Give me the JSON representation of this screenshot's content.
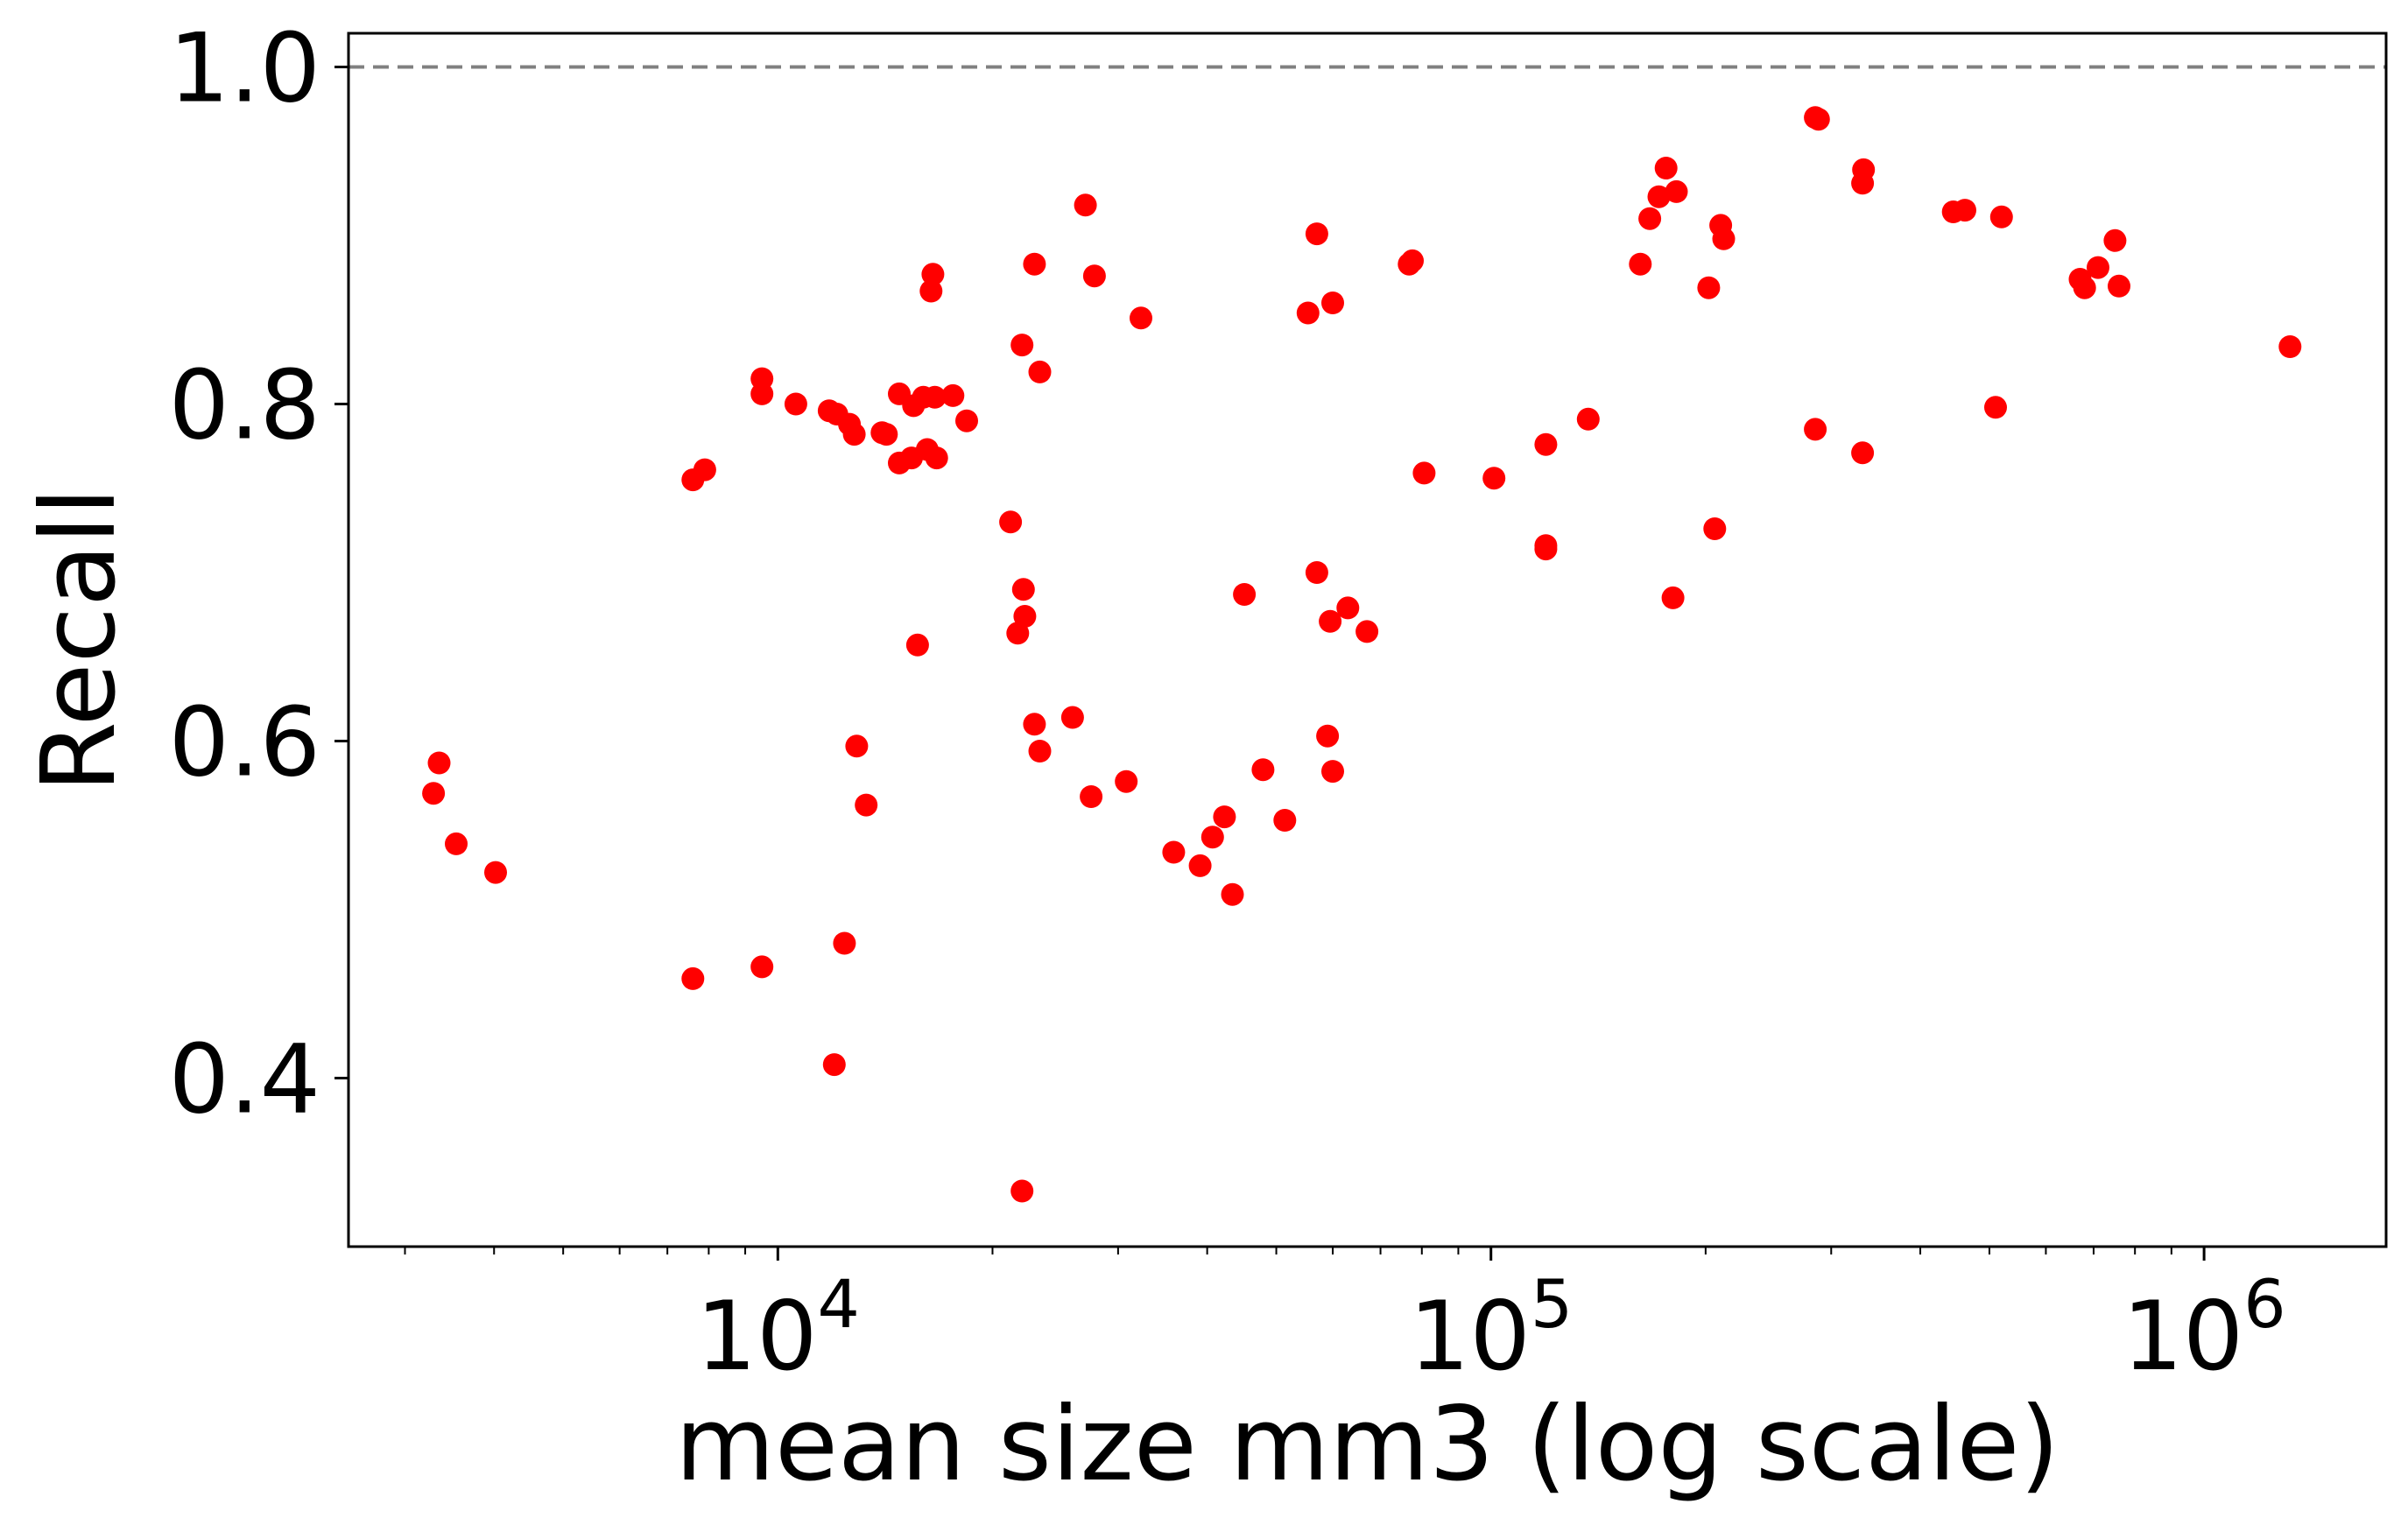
{
  "chart_data": {
    "type": "scatter",
    "title": "",
    "xlabel": "mean size mm3 (log scale)",
    "ylabel": "Recall",
    "xscale": "log",
    "xlim": [
      2500,
      1800000
    ],
    "ylim": [
      0.3,
      1.02
    ],
    "grid": false,
    "x_ticks": [
      {
        "value": 10000,
        "base": "10",
        "exp": "4"
      },
      {
        "value": 100000,
        "base": "10",
        "exp": "5"
      },
      {
        "value": 1000000,
        "base": "10",
        "exp": "6"
      }
    ],
    "y_ticks": [
      {
        "value": 0.4,
        "label": "0.4"
      },
      {
        "value": 0.6,
        "label": "0.6"
      },
      {
        "value": 0.8,
        "label": "0.8"
      },
      {
        "value": 1.0,
        "label": "1.0"
      }
    ],
    "reference_line": {
      "y": 1.0,
      "color": "#808080",
      "style": "dashed"
    },
    "marker_color": "#ff0000",
    "points": [
      {
        "x": 3350,
        "y": 0.587
      },
      {
        "x": 3290,
        "y": 0.569
      },
      {
        "x": 3540,
        "y": 0.539
      },
      {
        "x": 4020,
        "y": 0.522
      },
      {
        "x": 7600,
        "y": 0.755
      },
      {
        "x": 7900,
        "y": 0.761
      },
      {
        "x": 7600,
        "y": 0.459
      },
      {
        "x": 9500,
        "y": 0.815
      },
      {
        "x": 9500,
        "y": 0.806
      },
      {
        "x": 9500,
        "y": 0.466
      },
      {
        "x": 10600,
        "y": 0.8
      },
      {
        "x": 11800,
        "y": 0.796
      },
      {
        "x": 12100,
        "y": 0.794
      },
      {
        "x": 12600,
        "y": 0.788
      },
      {
        "x": 12800,
        "y": 0.782
      },
      {
        "x": 12000,
        "y": 0.408
      },
      {
        "x": 12400,
        "y": 0.48
      },
      {
        "x": 12900,
        "y": 0.597
      },
      {
        "x": 13300,
        "y": 0.562
      },
      {
        "x": 14000,
        "y": 0.783
      },
      {
        "x": 14200,
        "y": 0.782
      },
      {
        "x": 14800,
        "y": 0.806
      },
      {
        "x": 14800,
        "y": 0.765
      },
      {
        "x": 15400,
        "y": 0.768
      },
      {
        "x": 15500,
        "y": 0.799
      },
      {
        "x": 15700,
        "y": 0.657
      },
      {
        "x": 16000,
        "y": 0.804
      },
      {
        "x": 16200,
        "y": 0.773
      },
      {
        "x": 16400,
        "y": 0.867
      },
      {
        "x": 16500,
        "y": 0.877
      },
      {
        "x": 16700,
        "y": 0.768
      },
      {
        "x": 16600,
        "y": 0.804
      },
      {
        "x": 17600,
        "y": 0.805
      },
      {
        "x": 18400,
        "y": 0.79
      },
      {
        "x": 21200,
        "y": 0.73
      },
      {
        "x": 21700,
        "y": 0.664
      },
      {
        "x": 22100,
        "y": 0.69
      },
      {
        "x": 22200,
        "y": 0.674
      },
      {
        "x": 22000,
        "y": 0.835
      },
      {
        "x": 22000,
        "y": 0.333
      },
      {
        "x": 22900,
        "y": 0.883
      },
      {
        "x": 23300,
        "y": 0.819
      },
      {
        "x": 22900,
        "y": 0.61
      },
      {
        "x": 23300,
        "y": 0.594
      },
      {
        "x": 25900,
        "y": 0.614
      },
      {
        "x": 27000,
        "y": 0.918
      },
      {
        "x": 27800,
        "y": 0.876
      },
      {
        "x": 27500,
        "y": 0.567
      },
      {
        "x": 30800,
        "y": 0.576
      },
      {
        "x": 32300,
        "y": 0.851
      },
      {
        "x": 35900,
        "y": 0.534
      },
      {
        "x": 39100,
        "y": 0.526
      },
      {
        "x": 40700,
        "y": 0.543
      },
      {
        "x": 42300,
        "y": 0.555
      },
      {
        "x": 43400,
        "y": 0.509
      },
      {
        "x": 45100,
        "y": 0.687
      },
      {
        "x": 47900,
        "y": 0.583
      },
      {
        "x": 51400,
        "y": 0.553
      },
      {
        "x": 55400,
        "y": 0.854
      },
      {
        "x": 57000,
        "y": 0.901
      },
      {
        "x": 57000,
        "y": 0.7
      },
      {
        "x": 59000,
        "y": 0.603
      },
      {
        "x": 59500,
        "y": 0.671
      },
      {
        "x": 60000,
        "y": 0.86
      },
      {
        "x": 60000,
        "y": 0.582
      },
      {
        "x": 63000,
        "y": 0.679
      },
      {
        "x": 67000,
        "y": 0.665
      },
      {
        "x": 76800,
        "y": 0.883
      },
      {
        "x": 77600,
        "y": 0.885
      },
      {
        "x": 80600,
        "y": 0.759
      },
      {
        "x": 101000,
        "y": 0.756
      },
      {
        "x": 119400,
        "y": 0.776
      },
      {
        "x": 119400,
        "y": 0.716
      },
      {
        "x": 119400,
        "y": 0.714
      },
      {
        "x": 136900,
        "y": 0.791
      },
      {
        "x": 162000,
        "y": 0.883
      },
      {
        "x": 167000,
        "y": 0.91
      },
      {
        "x": 172000,
        "y": 0.923
      },
      {
        "x": 176000,
        "y": 0.94
      },
      {
        "x": 182000,
        "y": 0.926
      },
      {
        "x": 180000,
        "y": 0.685
      },
      {
        "x": 202000,
        "y": 0.869
      },
      {
        "x": 206000,
        "y": 0.726
      },
      {
        "x": 210000,
        "y": 0.906
      },
      {
        "x": 212000,
        "y": 0.898
      },
      {
        "x": 285000,
        "y": 0.97
      },
      {
        "x": 288000,
        "y": 0.969
      },
      {
        "x": 285000,
        "y": 0.785
      },
      {
        "x": 333000,
        "y": 0.939
      },
      {
        "x": 332000,
        "y": 0.931
      },
      {
        "x": 332000,
        "y": 0.771
      },
      {
        "x": 445000,
        "y": 0.914
      },
      {
        "x": 462000,
        "y": 0.915
      },
      {
        "x": 520000,
        "y": 0.911
      },
      {
        "x": 510000,
        "y": 0.798
      },
      {
        "x": 670000,
        "y": 0.874
      },
      {
        "x": 680000,
        "y": 0.869
      },
      {
        "x": 710000,
        "y": 0.881
      },
      {
        "x": 750000,
        "y": 0.897
      },
      {
        "x": 760000,
        "y": 0.87
      },
      {
        "x": 1320000,
        "y": 0.834
      }
    ]
  }
}
